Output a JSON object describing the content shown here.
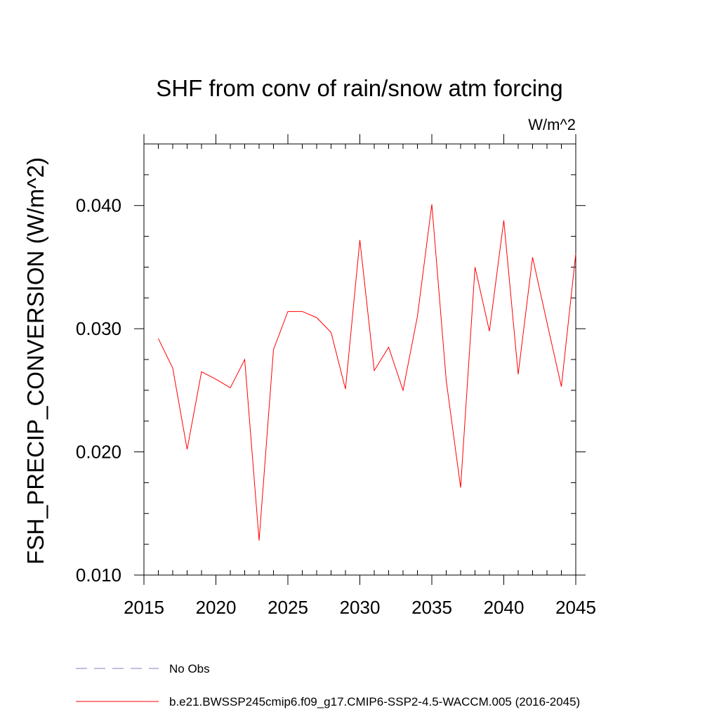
{
  "chart_data": {
    "type": "line",
    "title": "SHF from conv of rain/snow atm forcing",
    "units": "W/m^2",
    "ylabel": "FSH_PRECIP_CONVERSION  (W/m^2)",
    "xlabel": "",
    "xlim": [
      2015,
      2045
    ],
    "ylim": [
      0.01,
      0.045
    ],
    "x_ticks": [
      2015,
      2020,
      2025,
      2030,
      2035,
      2040,
      2045
    ],
    "x_tick_labels": [
      "2015",
      "2020",
      "2025",
      "2030",
      "2035",
      "2040",
      "2045"
    ],
    "y_ticks": [
      0.01,
      0.02,
      0.03,
      0.04
    ],
    "y_tick_labels": [
      "0.010",
      "0.020",
      "0.030",
      "0.040"
    ],
    "grid": false,
    "legend_position": "bottom",
    "series": [
      {
        "name": "b.e21.BWSSP245cmip6.f09_g17.CMIP6-SSP2-4.5-WACCM.005 (2016-2045)",
        "color": "#ff0000",
        "style": "solid",
        "x": [
          2016,
          2017,
          2018,
          2019,
          2020,
          2021,
          2022,
          2023,
          2024,
          2025,
          2026,
          2027,
          2028,
          2029,
          2030,
          2031,
          2032,
          2033,
          2034,
          2035,
          2036,
          2037,
          2038,
          2039,
          2040,
          2041,
          2042,
          2043,
          2044,
          2045
        ],
        "values": [
          0.0292,
          0.0268,
          0.0202,
          0.0265,
          0.0259,
          0.0252,
          0.0275,
          0.0128,
          0.0283,
          0.0314,
          0.0314,
          0.0309,
          0.0297,
          0.0251,
          0.0372,
          0.0266,
          0.0285,
          0.025,
          0.031,
          0.0401,
          0.0258,
          0.0171,
          0.035,
          0.0298,
          0.0388,
          0.0263,
          0.0358,
          0.0305,
          0.0253,
          0.0361
        ]
      }
    ],
    "legend": [
      {
        "label": "No Obs",
        "color": "#8080c0",
        "style": "dashed"
      },
      {
        "label": "b.e21.BWSSP245cmip6.f09_g17.CMIP6-SSP2-4.5-WACCM.005 (2016-2045)",
        "color": "#ff0000",
        "style": "solid"
      }
    ]
  }
}
